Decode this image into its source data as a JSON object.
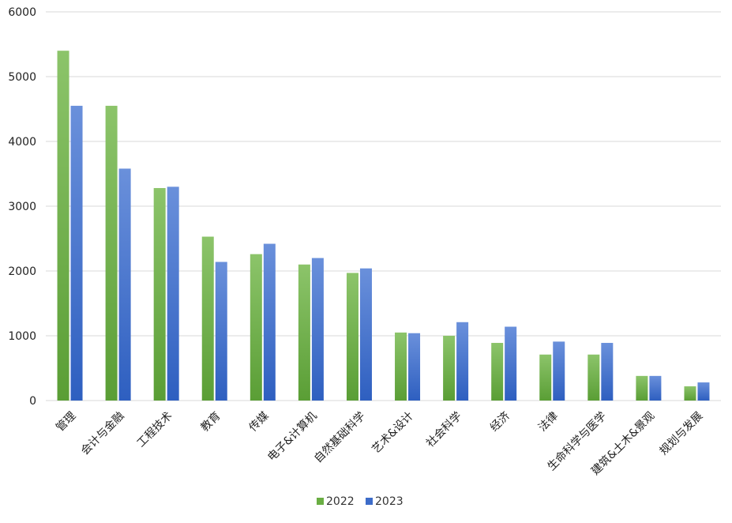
{
  "chart_data": {
    "type": "bar",
    "title": "",
    "xlabel": "",
    "ylabel": "",
    "ylim": [
      0,
      6000
    ],
    "yticks": [
      0,
      1000,
      2000,
      3000,
      4000,
      5000,
      6000
    ],
    "grid": true,
    "legend_position": "bottom",
    "categories": [
      "管理",
      "会计与金融",
      "工程技术",
      "教育",
      "传媒",
      "电子&计算机",
      "自然基础科学",
      "艺术&设计",
      "社会科学",
      "经济",
      "法律",
      "生命科学与医学",
      "建筑&土木&景观",
      "规划与发展"
    ],
    "series": [
      {
        "name": "2022",
        "color": "#6aae43",
        "values": [
          5400,
          4550,
          3280,
          2530,
          2260,
          2100,
          1970,
          1050,
          1000,
          890,
          710,
          710,
          380,
          220
        ]
      },
      {
        "name": "2023",
        "color": "#3d6cc9",
        "values": [
          4550,
          3580,
          3300,
          2140,
          2420,
          2200,
          2040,
          1040,
          1210,
          1140,
          910,
          890,
          380,
          280
        ]
      }
    ]
  }
}
